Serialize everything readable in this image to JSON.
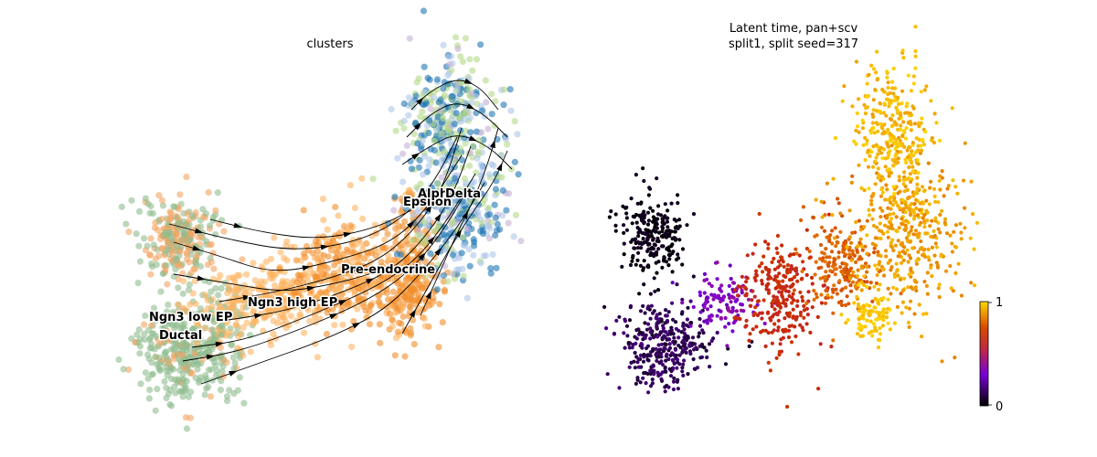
{
  "panels": {
    "left": {
      "title": "clusters"
    },
    "right": {
      "title_line1": "Latent time, pan+scv",
      "title_line2": "split1, split seed=317"
    }
  },
  "chart_data": [
    {
      "type": "scatter",
      "title": "clusters",
      "embedding": "umap",
      "streamlines": true,
      "axes": "off",
      "cluster_labels": [
        "Ductal",
        "Ngn3 low EP",
        "Ngn3 high EP",
        "Pre-endocrine",
        "Epsilon",
        "Alpha",
        "Delta"
      ],
      "colors": {
        "Ductal": "#8fbc8f",
        "Ngn3 low EP": "#f4a460",
        "Ngn3 high EP": "#fdb462",
        "Pre-endocrine": "#f28e2b",
        "Epsilon": "#c5b0d5",
        "Alpha": "#1f77b4",
        "Delta": "#aec7e8",
        "Beta": "#b5d88a"
      }
    },
    {
      "type": "scatter",
      "title": "Latent time, pan+scv\nsplit1, split seed=317",
      "color_by": "latent time",
      "colormap": "gnuplot",
      "colorbar": {
        "ticks": [
          "0",
          "1"
        ],
        "range": [
          0,
          1
        ]
      },
      "axes": "off"
    }
  ]
}
